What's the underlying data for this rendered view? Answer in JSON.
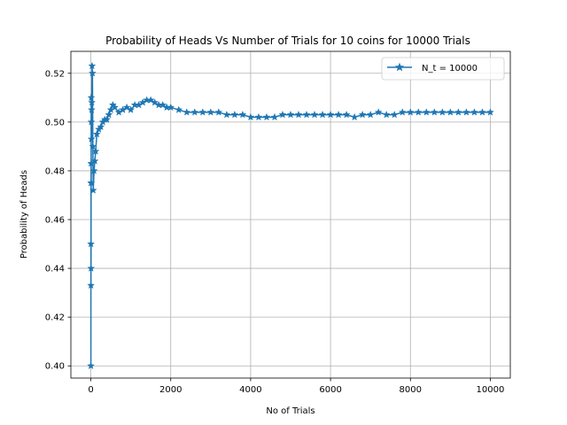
{
  "chart_data": {
    "type": "line",
    "title": "Probability of Heads Vs Number of Trials for 10 coins for 10000 Trials",
    "xlabel": "No of Trials",
    "ylabel": "Probability of Heads",
    "xlim": [
      -500,
      10500
    ],
    "ylim": [
      0.395,
      0.529
    ],
    "xticks": [
      0,
      2000,
      4000,
      6000,
      8000,
      10000
    ],
    "xtick_labels": [
      "0",
      "2000",
      "4000",
      "6000",
      "8000",
      "10000"
    ],
    "yticks": [
      0.4,
      0.42,
      0.44,
      0.46,
      0.48,
      0.5,
      0.52
    ],
    "ytick_labels": [
      "0.40",
      "0.42",
      "0.44",
      "0.46",
      "0.48",
      "0.50",
      "0.52"
    ],
    "grid": true,
    "legend_position": "top-right",
    "series": [
      {
        "name": "N_t = 10000",
        "color": "#1f77b4",
        "marker": "star",
        "x": [
          1,
          2,
          3,
          4,
          5,
          6,
          8,
          10,
          12,
          15,
          20,
          25,
          30,
          40,
          50,
          60,
          80,
          100,
          120,
          150,
          200,
          250,
          300,
          350,
          400,
          450,
          500,
          550,
          600,
          700,
          800,
          900,
          1000,
          1100,
          1200,
          1300,
          1400,
          1500,
          1600,
          1700,
          1800,
          1900,
          2000,
          2200,
          2400,
          2600,
          2800,
          3000,
          3200,
          3400,
          3600,
          3800,
          4000,
          4200,
          4400,
          4600,
          4800,
          5000,
          5200,
          5400,
          5600,
          5800,
          6000,
          6200,
          6400,
          6600,
          6800,
          7000,
          7200,
          7400,
          7600,
          7800,
          8000,
          8200,
          8400,
          8600,
          8800,
          9000,
          9200,
          9400,
          9600,
          9800,
          10000
        ],
        "y": [
          0.4,
          0.45,
          0.433,
          0.475,
          0.44,
          0.483,
          0.475,
          0.51,
          0.5,
          0.493,
          0.505,
          0.508,
          0.523,
          0.52,
          0.49,
          0.472,
          0.48,
          0.484,
          0.488,
          0.495,
          0.497,
          0.498,
          0.5,
          0.501,
          0.501,
          0.503,
          0.505,
          0.507,
          0.506,
          0.504,
          0.505,
          0.506,
          0.505,
          0.507,
          0.507,
          0.508,
          0.509,
          0.509,
          0.508,
          0.507,
          0.507,
          0.506,
          0.506,
          0.505,
          0.504,
          0.504,
          0.504,
          0.504,
          0.504,
          0.503,
          0.503,
          0.503,
          0.502,
          0.502,
          0.502,
          0.502,
          0.503,
          0.503,
          0.503,
          0.503,
          0.503,
          0.503,
          0.503,
          0.503,
          0.503,
          0.502,
          0.503,
          0.503,
          0.504,
          0.503,
          0.503,
          0.504,
          0.504,
          0.504,
          0.504,
          0.504,
          0.504,
          0.504,
          0.504,
          0.504,
          0.504,
          0.504,
          0.504
        ]
      }
    ]
  }
}
